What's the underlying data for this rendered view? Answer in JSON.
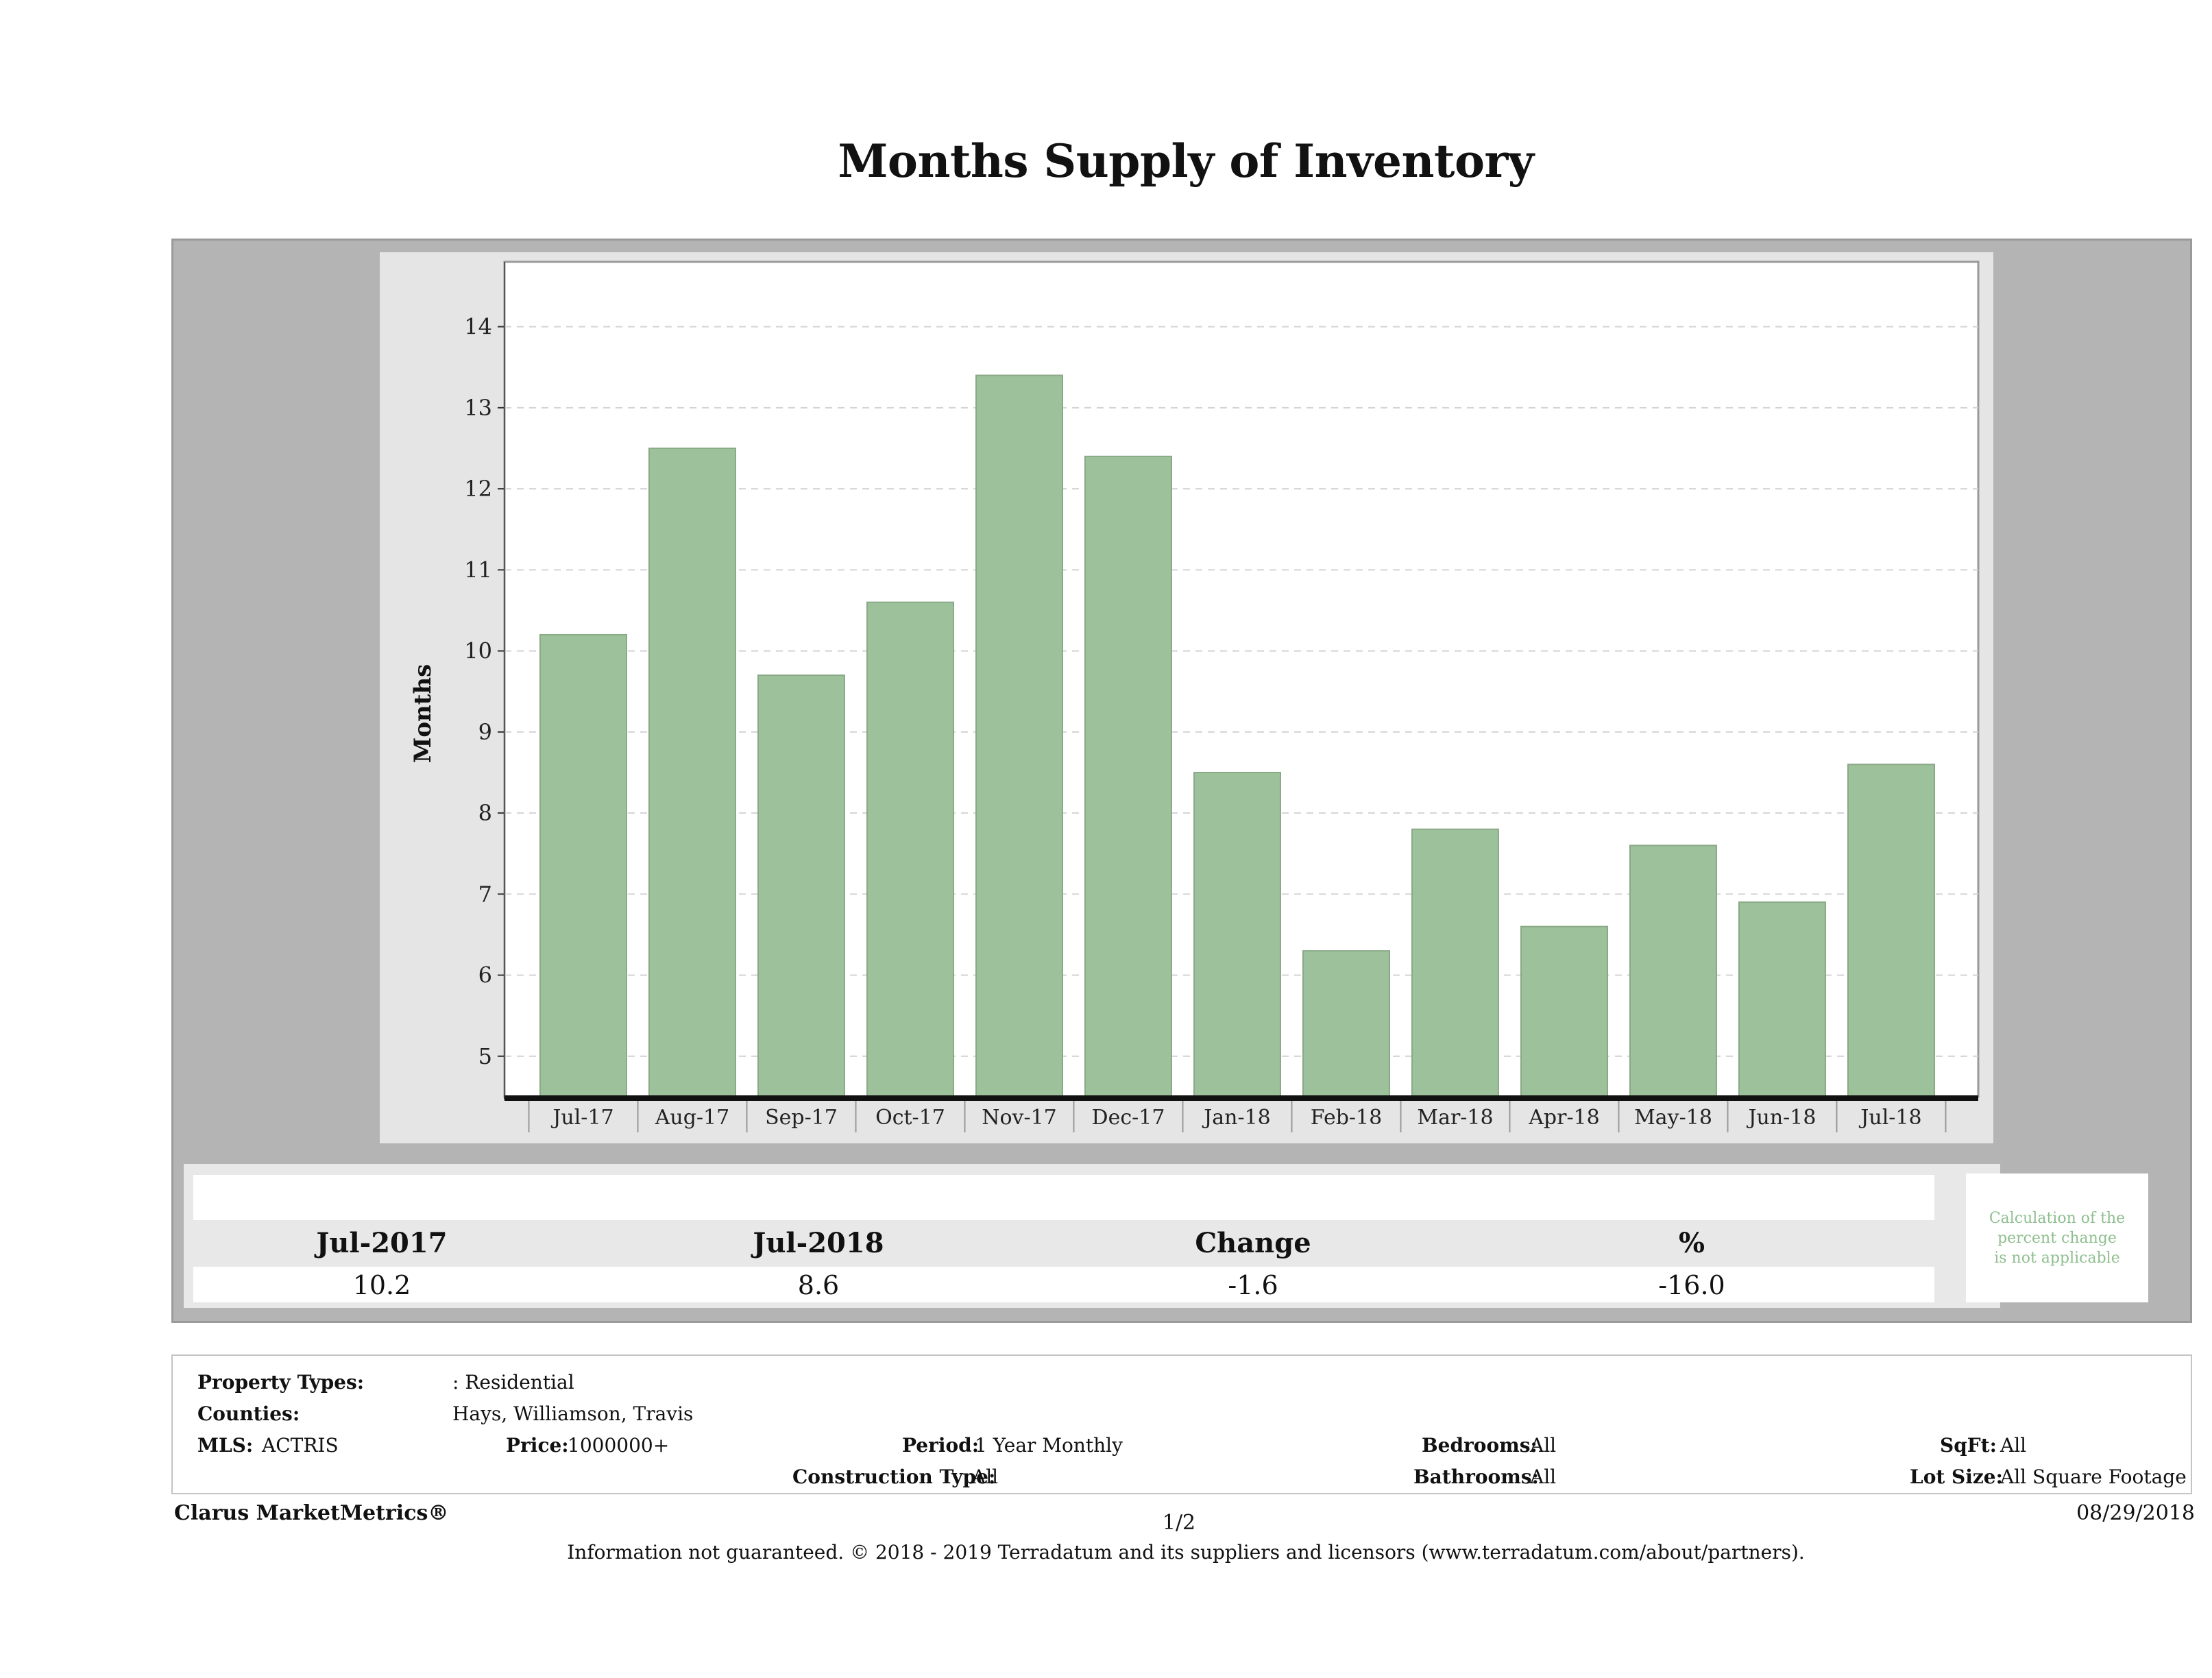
{
  "chart_data": {
    "type": "bar",
    "title": "Months Supply of Inventory",
    "ylabel": "Months",
    "xlabel": "",
    "categories": [
      "Jul-17",
      "Aug-17",
      "Sep-17",
      "Oct-17",
      "Nov-17",
      "Dec-17",
      "Jan-18",
      "Feb-18",
      "Mar-18",
      "Apr-18",
      "May-18",
      "Jun-18",
      "Jul-18"
    ],
    "values": [
      10.2,
      12.5,
      9.7,
      10.6,
      13.4,
      12.4,
      8.5,
      6.3,
      7.8,
      6.6,
      7.6,
      6.9,
      8.6
    ],
    "ylim": [
      4.5,
      14.8
    ],
    "yticks": [
      5,
      6,
      7,
      8,
      9,
      10,
      11,
      12,
      13,
      14
    ],
    "grid": true,
    "bar_color": "#9dc19a"
  },
  "summary": {
    "headers": [
      "Jul-2017",
      "Jul-2018",
      "Change",
      "%"
    ],
    "values": [
      "10.2",
      "8.6",
      "-1.6",
      "-16.0"
    ],
    "note_lines": [
      "Calculation of the",
      "percent change",
      "is not applicable"
    ]
  },
  "criteria": {
    "property_types_label": "Property Types:",
    "property_types_value": ": Residential",
    "counties_label": "Counties:",
    "counties_value": "Hays, Williamson, Travis",
    "mls_label": "MLS:",
    "mls_value": "ACTRIS",
    "price_label": "Price:",
    "price_value": "1000000+",
    "period_label": "Period:",
    "period_value": "1 Year Monthly",
    "construction_label": "Construction Type:",
    "construction_value": "All",
    "bedrooms_label": "Bedrooms:",
    "bedrooms_value": "All",
    "bathrooms_label": "Bathrooms:",
    "bathrooms_value": "All",
    "sqft_label": "SqFt:",
    "sqft_value": "All",
    "lotsize_label": "Lot Size:",
    "lotsize_value": "All Square Footage"
  },
  "footer": {
    "brand": "Clarus MarketMetrics®",
    "page": "1/2",
    "date": "08/29/2018",
    "disclaimer": "Information not guaranteed. © 2018 - 2019 Terradatum and its suppliers and licensors (www.terradatum.com/about/partners)."
  }
}
